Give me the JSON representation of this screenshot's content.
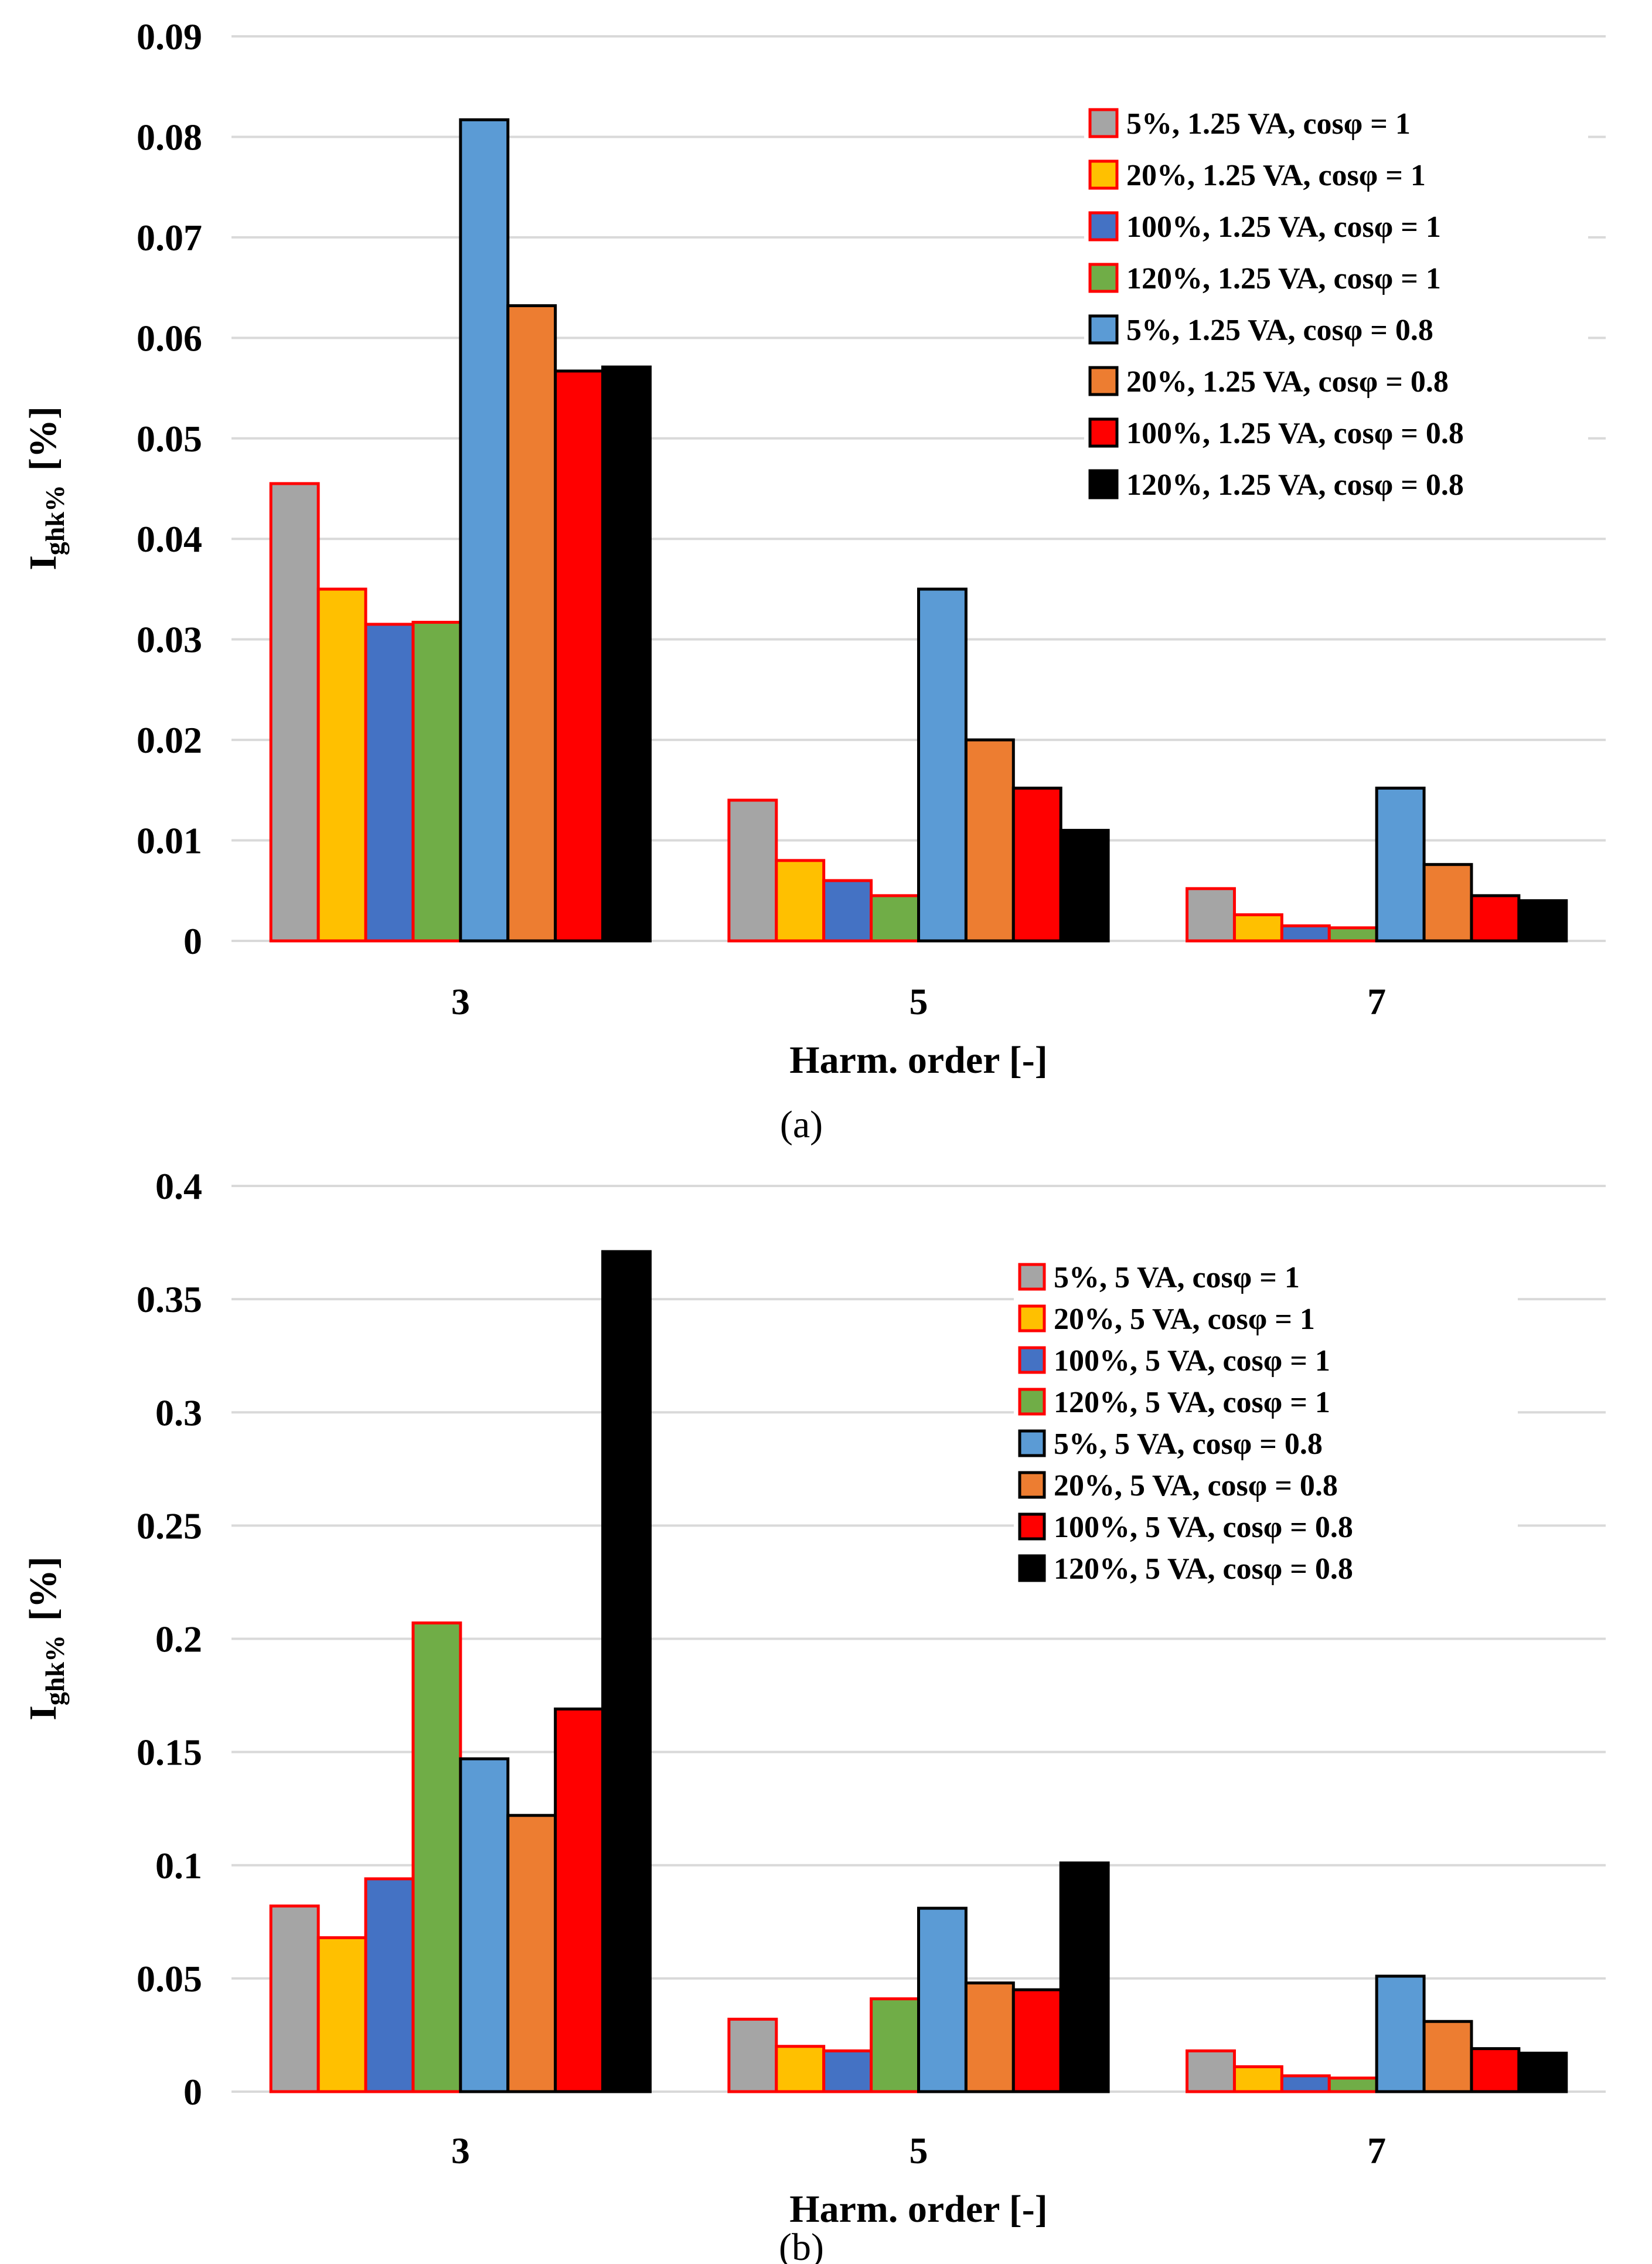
{
  "chart_data": [
    {
      "type": "bar",
      "panel_label": "(a)",
      "categories": [
        "3",
        "5",
        "7"
      ],
      "xlabel": "Harm. order [-]",
      "ylabel_main": "I",
      "ylabel_sub": "ghk%",
      "ylabel_unit": "[%]",
      "ylim": [
        0,
        0.09
      ],
      "ytick_step": 0.01,
      "yticks": [
        "0",
        "0.01",
        "0.02",
        "0.03",
        "0.04",
        "0.05",
        "0.06",
        "0.07",
        "0.08",
        "0.09"
      ],
      "grid": true,
      "legend_position": "top-right",
      "series": [
        {
          "name": "5%, 1.25 VA, cosφ = 1",
          "fill": "#A5A5A5",
          "stroke": "#FF0000",
          "values": [
            0.0455,
            0.014,
            0.0052
          ]
        },
        {
          "name": "20%, 1.25 VA, cosφ = 1",
          "fill": "#FFC000",
          "stroke": "#FF0000",
          "values": [
            0.035,
            0.008,
            0.0026
          ]
        },
        {
          "name": "100%, 1.25 VA, cosφ = 1",
          "fill": "#4472C4",
          "stroke": "#FF0000",
          "values": [
            0.0315,
            0.006,
            0.0015
          ]
        },
        {
          "name": "120%, 1.25 VA, cosφ = 1",
          "fill": "#70AD47",
          "stroke": "#FF0000",
          "values": [
            0.0317,
            0.0045,
            0.0013
          ]
        },
        {
          "name": "5%, 1.25 VA, cosφ = 0.8",
          "fill": "#5B9BD5",
          "stroke": "#000000",
          "values": [
            0.0817,
            0.035,
            0.0152
          ]
        },
        {
          "name": "20%, 1.25 VA, cosφ = 0.8",
          "fill": "#ED7D31",
          "stroke": "#000000",
          "values": [
            0.0632,
            0.02,
            0.0076
          ]
        },
        {
          "name": "100%, 1.25 VA, cosφ = 0.8",
          "fill": "#FF0000",
          "stroke": "#000000",
          "values": [
            0.0567,
            0.0152,
            0.0045
          ]
        },
        {
          "name": "120%, 1.25 VA, cosφ = 0.8",
          "fill": "#000000",
          "stroke": "#000000",
          "values": [
            0.0571,
            0.011,
            0.004
          ]
        }
      ]
    },
    {
      "type": "bar",
      "panel_label": "(b)",
      "categories": [
        "3",
        "5",
        "7"
      ],
      "xlabel": "Harm. order [-]",
      "ylabel_main": "I",
      "ylabel_sub": "ghk%",
      "ylabel_unit": "[%]",
      "ylim": [
        0,
        0.4
      ],
      "ytick_step": 0.05,
      "yticks": [
        "0",
        "0.05",
        "0.1",
        "0.15",
        "0.2",
        "0.25",
        "0.3",
        "0.35",
        "0.4"
      ],
      "grid": true,
      "legend_position": "top-right",
      "series": [
        {
          "name": "5%, 5 VA, cosφ = 1",
          "fill": "#A5A5A5",
          "stroke": "#FF0000",
          "values": [
            0.082,
            0.032,
            0.018
          ]
        },
        {
          "name": "20%, 5 VA, cosφ = 1",
          "fill": "#FFC000",
          "stroke": "#FF0000",
          "values": [
            0.068,
            0.02,
            0.011
          ]
        },
        {
          "name": "100%, 5 VA, cosφ = 1",
          "fill": "#4472C4",
          "stroke": "#FF0000",
          "values": [
            0.094,
            0.018,
            0.007
          ]
        },
        {
          "name": "120%, 5 VA, cosφ = 1",
          "fill": "#70AD47",
          "stroke": "#FF0000",
          "values": [
            0.207,
            0.041,
            0.006
          ]
        },
        {
          "name": "5%, 5 VA, cosφ = 0.8",
          "fill": "#5B9BD5",
          "stroke": "#000000",
          "values": [
            0.147,
            0.081,
            0.051
          ]
        },
        {
          "name": "20%, 5 VA, cosφ = 0.8",
          "fill": "#ED7D31",
          "stroke": "#000000",
          "values": [
            0.122,
            0.048,
            0.031
          ]
        },
        {
          "name": "100%, 5 VA, cosφ = 0.8",
          "fill": "#FF0000",
          "stroke": "#000000",
          "values": [
            0.169,
            0.045,
            0.019
          ]
        },
        {
          "name": "120%, 5 VA, cosφ = 0.8",
          "fill": "#000000",
          "stroke": "#000000",
          "values": [
            0.371,
            0.101,
            0.017
          ]
        }
      ]
    }
  ]
}
